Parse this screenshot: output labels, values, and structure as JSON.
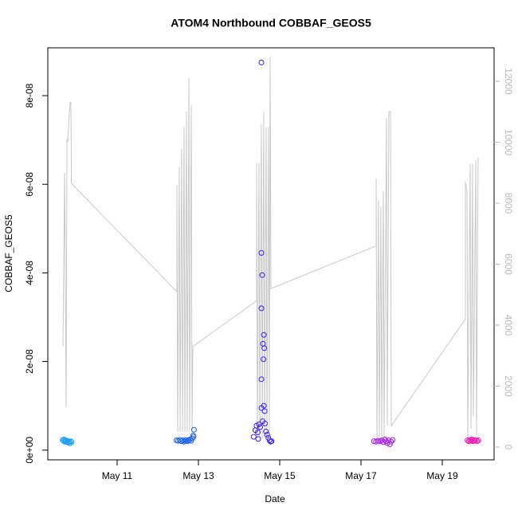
{
  "chart_data": {
    "type": "scatter",
    "title": "ATOM4 Northbound COBBAF_GEOS5",
    "x_label": "Date",
    "y_label": "COBBAF_GEOS5",
    "xlim": [
      9.294,
      20.275
    ],
    "xticks": [
      {
        "value": 11,
        "label": "May 11"
      },
      {
        "value": 13,
        "label": "May 13"
      },
      {
        "value": 15,
        "label": "May 15"
      },
      {
        "value": 17,
        "label": "May 17"
      },
      {
        "value": 19,
        "label": "May 19"
      }
    ],
    "ylim": [
      -2.2e-09,
      9.08e-08
    ],
    "yticks": [
      {
        "value": 0,
        "label": "0e+00"
      },
      {
        "value": 2e-08,
        "label": "2e-08"
      },
      {
        "value": 4e-08,
        "label": "4e-08"
      },
      {
        "value": 6e-08,
        "label": "6e-08"
      },
      {
        "value": 8e-08,
        "label": "8e-08"
      }
    ],
    "y2lim": [
      -418,
      13098
    ],
    "y2ticks": [
      0,
      2000,
      4000,
      6000,
      8000,
      10000,
      12000
    ],
    "series": [
      {
        "type": "scatter",
        "color": "#1e9ff0",
        "x": [
          9.66,
          9.68,
          9.7,
          9.71,
          9.73,
          9.74,
          9.76,
          9.78,
          9.8,
          9.82,
          9.84,
          9.86,
          9.88
        ],
        "values": [
          2.3e-09,
          2.1e-09,
          2.4e-09,
          1.9e-09,
          2.2e-09,
          2e-09,
          1.8e-09,
          2.1e-09,
          1.7e-09,
          1.9e-09,
          1.5e-09,
          2e-09,
          1.8e-09
        ]
      },
      {
        "type": "scatter",
        "color": "#1a5ff0",
        "x": [
          12.46,
          12.5,
          12.54,
          12.58,
          12.61,
          12.64,
          12.67,
          12.7,
          12.73,
          12.76,
          12.79,
          12.82,
          12.85,
          12.87,
          12.88,
          12.89
        ],
        "values": [
          2.2e-09,
          2.1e-09,
          2.3e-09,
          2e-09,
          2.2e-09,
          1.9e-09,
          2.1e-09,
          2.3e-09,
          2e-09,
          2.2e-09,
          2.4e-09,
          2.1e-09,
          2.6e-09,
          3.3e-09,
          3e-09,
          4.6e-09
        ]
      },
      {
        "type": "scatter",
        "color": "#3a1ff5",
        "x": [
          14.36,
          14.4,
          14.43,
          14.46,
          14.49,
          14.52,
          14.55,
          14.55,
          14.55,
          14.57,
          14.55,
          14.59,
          14.61,
          14.6,
          14.62,
          14.55,
          14.61,
          14.63,
          14.64,
          14.66,
          14.69,
          14.72,
          14.75,
          14.78,
          14.8,
          14.47,
          14.58
        ],
        "values": [
          3e-09,
          4.5e-09,
          5.5e-09,
          4e-09,
          5.8e-09,
          5.2e-09,
          8.75e-08,
          4.45e-08,
          3.2e-08,
          3.95e-08,
          1.6e-08,
          2.4e-08,
          2.6e-08,
          2.05e-08,
          2.3e-08,
          9.5e-09,
          1e-08,
          8.8e-09,
          6e-09,
          4.2e-09,
          3.5e-09,
          2.8e-09,
          2.2e-09,
          1.9e-09,
          2e-09,
          2.5e-09,
          6.5e-09
        ]
      },
      {
        "type": "scatter",
        "color": "#a51af0",
        "x": [
          17.32,
          17.37,
          17.42,
          17.47,
          17.51,
          17.55,
          17.59,
          17.62,
          17.65,
          17.68,
          17.71,
          17.74,
          17.78
        ],
        "values": [
          2e-09,
          1.9e-09,
          2.1e-09,
          2e-09,
          2.2e-09,
          1.8e-09,
          2.4e-09,
          2e-09,
          1.6e-09,
          2.2e-09,
          1.3e-09,
          1.9e-09,
          2.3e-09
        ]
      },
      {
        "type": "scatter",
        "color": "#f01ab4",
        "x": [
          19.62,
          19.65,
          19.68,
          19.7,
          19.73,
          19.75,
          19.78,
          19.8,
          19.83,
          19.86,
          19.89
        ],
        "values": [
          2.2e-09,
          2e-09,
          2.3e-09,
          2.1e-09,
          2.4e-09,
          2e-09,
          2.2e-09,
          2.1e-09,
          2.3e-09,
          2e-09,
          2.2e-09
        ]
      },
      {
        "type": "line",
        "axis": "y2",
        "color": "#c8c8c8",
        "x": [
          9.667,
          9.706,
          9.745,
          9.765,
          9.784,
          9.804,
          9.843,
          9.863,
          9.873,
          12.471,
          12.471,
          12.49,
          12.529,
          12.549,
          12.588,
          12.608,
          12.647,
          12.667,
          12.706,
          12.725,
          12.765,
          12.784,
          12.824,
          12.843,
          12.863,
          14.431,
          14.431,
          14.451,
          14.49,
          14.51,
          14.549,
          14.569,
          14.608,
          14.627,
          14.667,
          14.686,
          14.725,
          14.745,
          14.765,
          14.784,
          17.373,
          17.373,
          17.392,
          17.431,
          17.451,
          17.49,
          17.51,
          17.549,
          17.569,
          17.627,
          17.647,
          17.686,
          17.725,
          17.745,
          19.569,
          19.569,
          19.608,
          19.627,
          19.686,
          19.706,
          19.745,
          19.765,
          19.824,
          19.843,
          19.882
        ],
        "values": [
          3300,
          9000,
          1300,
          10100,
          10000,
          10500,
          11300,
          11300,
          8650,
          5100,
          8600,
          500,
          9200,
          500,
          9800,
          500,
          10500,
          500,
          11000,
          500,
          12100,
          500,
          11200,
          500,
          3300,
          4800,
          9300,
          300,
          9300,
          300,
          10600,
          300,
          11000,
          300,
          10500,
          300,
          10500,
          300,
          12800,
          5200,
          6600,
          8800,
          300,
          8100,
          300,
          7900,
          300,
          8400,
          300,
          10800,
          700,
          11000,
          11000,
          700,
          4200,
          8700,
          8400,
          300,
          9300,
          600,
          9300,
          1000,
          9400,
          400,
          9500
        ]
      }
    ]
  }
}
